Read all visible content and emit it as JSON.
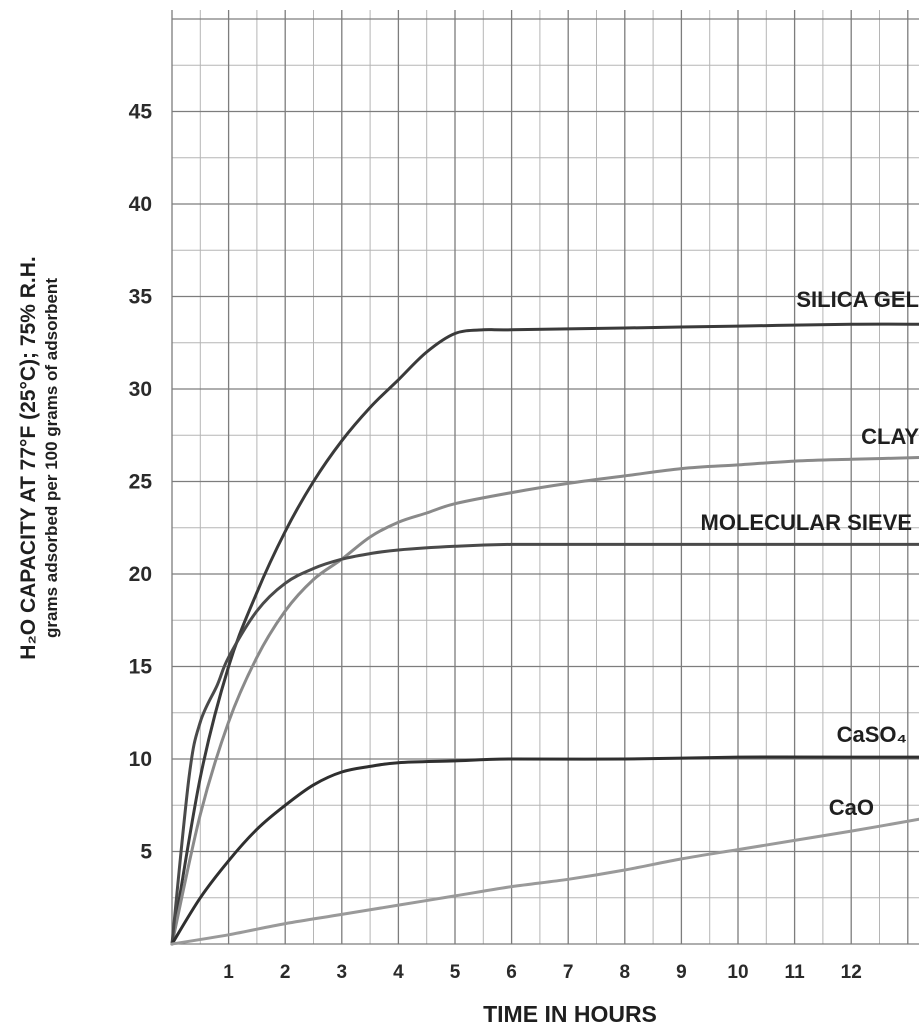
{
  "chart_data": {
    "type": "line",
    "xlabel": "TIME IN HOURS",
    "ylabel_main": "H₂O CAPACITY AT 77°F (25°C); 75% R.H.",
    "ylabel_sub": "grams adsorbed per 100 grams of adsorbent",
    "xlim": [
      0,
      13.3
    ],
    "ylim": [
      0,
      50
    ],
    "x_ticks": [
      1,
      2,
      3,
      4,
      5,
      6,
      7,
      8,
      9,
      10,
      11,
      12
    ],
    "y_ticks": [
      5,
      10,
      15,
      20,
      25,
      30,
      35,
      40,
      45
    ],
    "grid": true,
    "series": [
      {
        "name": "SILICA GEL",
        "color": "#3a3a3a",
        "points": [
          [
            0,
            0
          ],
          [
            0.5,
            9
          ],
          [
            1,
            15
          ],
          [
            1.5,
            19
          ],
          [
            2,
            22.3
          ],
          [
            2.5,
            25
          ],
          [
            3,
            27.2
          ],
          [
            3.5,
            29
          ],
          [
            4,
            30.5
          ],
          [
            4.5,
            32
          ],
          [
            5,
            33
          ],
          [
            5.5,
            33.2
          ],
          [
            6,
            33.2
          ],
          [
            8,
            33.3
          ],
          [
            10,
            33.4
          ],
          [
            12,
            33.5
          ],
          [
            13.3,
            33.5
          ]
        ]
      },
      {
        "name": "CLAY",
        "color": "#8a8a8a",
        "points": [
          [
            0,
            0
          ],
          [
            0.5,
            7
          ],
          [
            1,
            12
          ],
          [
            1.5,
            15.5
          ],
          [
            2,
            18
          ],
          [
            2.5,
            19.7
          ],
          [
            3,
            20.8
          ],
          [
            3.5,
            22
          ],
          [
            4,
            22.8
          ],
          [
            4.5,
            23.3
          ],
          [
            5,
            23.8
          ],
          [
            6,
            24.4
          ],
          [
            7,
            24.9
          ],
          [
            8,
            25.3
          ],
          [
            9,
            25.7
          ],
          [
            10,
            25.9
          ],
          [
            11,
            26.1
          ],
          [
            12,
            26.2
          ],
          [
            13.3,
            26.3
          ]
        ]
      },
      {
        "name": "MOLECULAR SIEVE",
        "color": "#4a4a4a",
        "points": [
          [
            0,
            0
          ],
          [
            0.3,
            9
          ],
          [
            0.5,
            12
          ],
          [
            0.8,
            14
          ],
          [
            1,
            15.5
          ],
          [
            1.5,
            18
          ],
          [
            2,
            19.5
          ],
          [
            2.5,
            20.3
          ],
          [
            3,
            20.8
          ],
          [
            3.5,
            21.1
          ],
          [
            4,
            21.3
          ],
          [
            5,
            21.5
          ],
          [
            6,
            21.6
          ],
          [
            8,
            21.6
          ],
          [
            10,
            21.6
          ],
          [
            12,
            21.6
          ],
          [
            13.3,
            21.6
          ]
        ]
      },
      {
        "name": "CaSO₄",
        "color": "#2f2f2f",
        "points": [
          [
            0,
            0
          ],
          [
            0.5,
            2.5
          ],
          [
            1,
            4.5
          ],
          [
            1.5,
            6.2
          ],
          [
            2,
            7.5
          ],
          [
            2.5,
            8.6
          ],
          [
            3,
            9.3
          ],
          [
            3.5,
            9.6
          ],
          [
            4,
            9.8
          ],
          [
            5,
            9.9
          ],
          [
            6,
            10
          ],
          [
            8,
            10
          ],
          [
            10,
            10.1
          ],
          [
            12,
            10.1
          ],
          [
            13.3,
            10.1
          ]
        ]
      },
      {
        "name": "CaO",
        "color": "#9a9a9a",
        "points": [
          [
            0,
            0
          ],
          [
            1,
            0.5
          ],
          [
            2,
            1.1
          ],
          [
            3,
            1.6
          ],
          [
            4,
            2.1
          ],
          [
            5,
            2.6
          ],
          [
            6,
            3.1
          ],
          [
            7,
            3.5
          ],
          [
            8,
            4
          ],
          [
            9,
            4.6
          ],
          [
            10,
            5.1
          ],
          [
            11,
            5.6
          ],
          [
            12,
            6.1
          ],
          [
            13.3,
            6.8
          ]
        ]
      }
    ]
  }
}
